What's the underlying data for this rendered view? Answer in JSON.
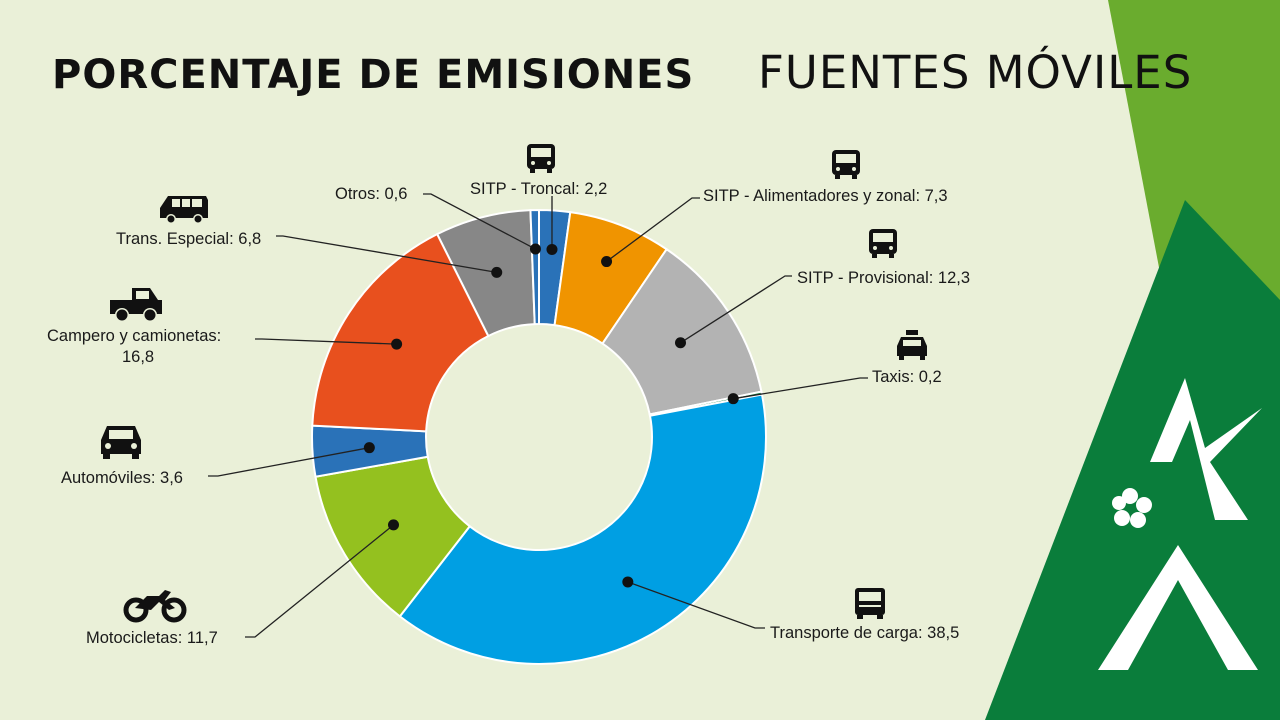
{
  "title": {
    "bold": "PORCENTAJE DE EMISIONES",
    "light": "FUENTES MÓVILES"
  },
  "colors": {
    "background": "#eaf0d8",
    "brand_green_dark": "#0a7d3b",
    "brand_green_light": "#6aac2e"
  },
  "chart_data": {
    "type": "donut",
    "title": "PORCENTAJE DE EMISIONES FUENTES MÓVILES",
    "unit": "%",
    "categories": [
      "SITP - Troncal",
      "SITP - Alimentadores y zonal",
      "SITP - Provisional",
      "Taxis",
      "Transporte de carga",
      "Motocicletas",
      "Automóviles",
      "Campero y camionetas",
      "Trans. Especial",
      "Otros"
    ],
    "values": [
      2.2,
      7.3,
      12.3,
      0.2,
      38.5,
      11.7,
      3.6,
      16.8,
      6.8,
      0.6
    ],
    "colors": [
      "#2a72b8",
      "#f09400",
      "#b3b3b3",
      "#0a7d3b",
      "#009fe3",
      "#94c11f",
      "#2a72b8",
      "#e8501e",
      "#878787",
      "#2a72b8"
    ],
    "labels": [
      "SITP - Troncal: 2,2",
      "SITP - Alimentadores y zonal: 7,3",
      "SITP - Provisional: 12,3",
      "Taxis: 0,2",
      "Transporte de carga: 38,5",
      "Motocicletas: 11,7",
      "Automóviles: 3,6",
      "Campero y camionetas: 16,8",
      "Trans. Especial: 6,8",
      "Otros: 0,6"
    ],
    "icons": [
      "bus-icon",
      "bus-icon",
      "bus-icon",
      "taxi-icon",
      "truck-icon",
      "motorcycle-icon",
      "car-icon",
      "pickup-truck-icon",
      "van-icon",
      ""
    ]
  }
}
